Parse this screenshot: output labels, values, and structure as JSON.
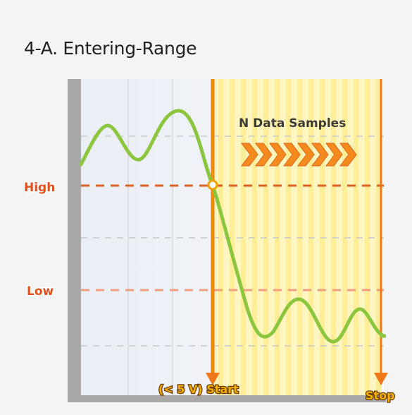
{
  "title": "4-A. Entering-Range",
  "levels": {
    "high": "High",
    "low": "Low"
  },
  "annotations": {
    "samples": "N Data Samples",
    "start": "(< 5 V) Start",
    "stop": "Stop"
  },
  "colors": {
    "signal": "#8cc63f",
    "high_line": "#e0601f",
    "low_line": "#f0a080",
    "marker": "#f07818",
    "axis": "#a8a8a8",
    "sample_band": "#fff3a8",
    "arrow": "#f58a1f"
  },
  "icons": {
    "samples_arrows": "chevron-right-icon"
  }
}
